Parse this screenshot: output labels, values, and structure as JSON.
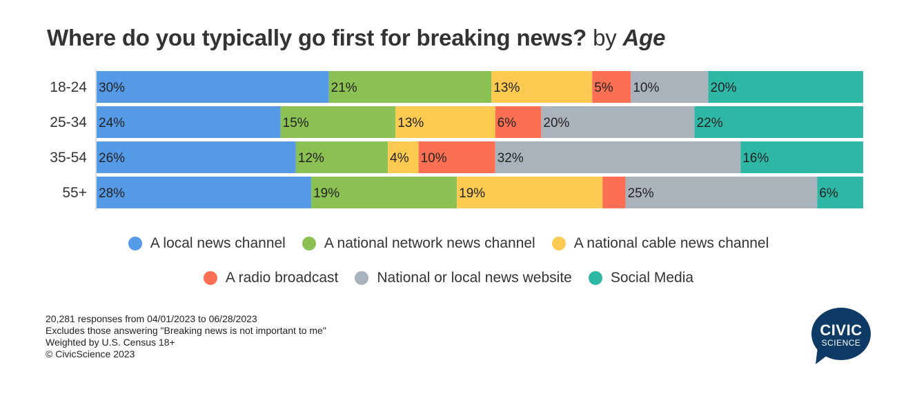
{
  "title": {
    "question": "Where do you typically go first for breaking news?",
    "by": "by",
    "dimension": "Age"
  },
  "chart_data": {
    "type": "bar",
    "orientation": "horizontal",
    "stacked": true,
    "normalized_percent": true,
    "categories": [
      "18-24",
      "25-34",
      "35-54",
      "55+"
    ],
    "series": [
      {
        "name": "A local news channel",
        "color": "#559ae6",
        "values": [
          30,
          24,
          26,
          28
        ],
        "labels": [
          "30%",
          "24%",
          "26%",
          "28%"
        ]
      },
      {
        "name": "A national network news channel",
        "color": "#8bc053",
        "values": [
          21,
          15,
          12,
          19
        ],
        "labels": [
          "21%",
          "15%",
          "12%",
          "19%"
        ]
      },
      {
        "name": "A national cable news channel",
        "color": "#fcca51",
        "values": [
          13,
          13,
          4,
          19
        ],
        "labels": [
          "13%",
          "13%",
          "4%",
          "19%"
        ]
      },
      {
        "name": "A radio broadcast",
        "color": "#fb6f52",
        "values": [
          5,
          6,
          10,
          3
        ],
        "labels": [
          "5%",
          "6%",
          "10%",
          ""
        ]
      },
      {
        "name": "National or local news website",
        "color": "#aab2bb",
        "values": [
          10,
          20,
          32,
          25
        ],
        "labels": [
          "10%",
          "20%",
          "32%",
          "25%"
        ]
      },
      {
        "name": "Social Media",
        "color": "#2fb7a5",
        "values": [
          20,
          22,
          16,
          6
        ],
        "labels": [
          "20%",
          "22%",
          "16%",
          "6%"
        ]
      }
    ],
    "legend_position": "bottom",
    "grid": false
  },
  "legend_rows": [
    [
      0,
      1,
      2
    ],
    [
      3,
      4,
      5
    ]
  ],
  "footnotes": [
    "20,281 responses from 04/01/2023 to 06/28/2023",
    "Excludes those answering \"Breaking news is not important to me\"",
    "Weighted by U.S. Census 18+",
    "© CivicScience 2023"
  ],
  "logo": {
    "line1": "CIVIC",
    "line2": "SCIENCE",
    "color": "#0d3b66"
  }
}
